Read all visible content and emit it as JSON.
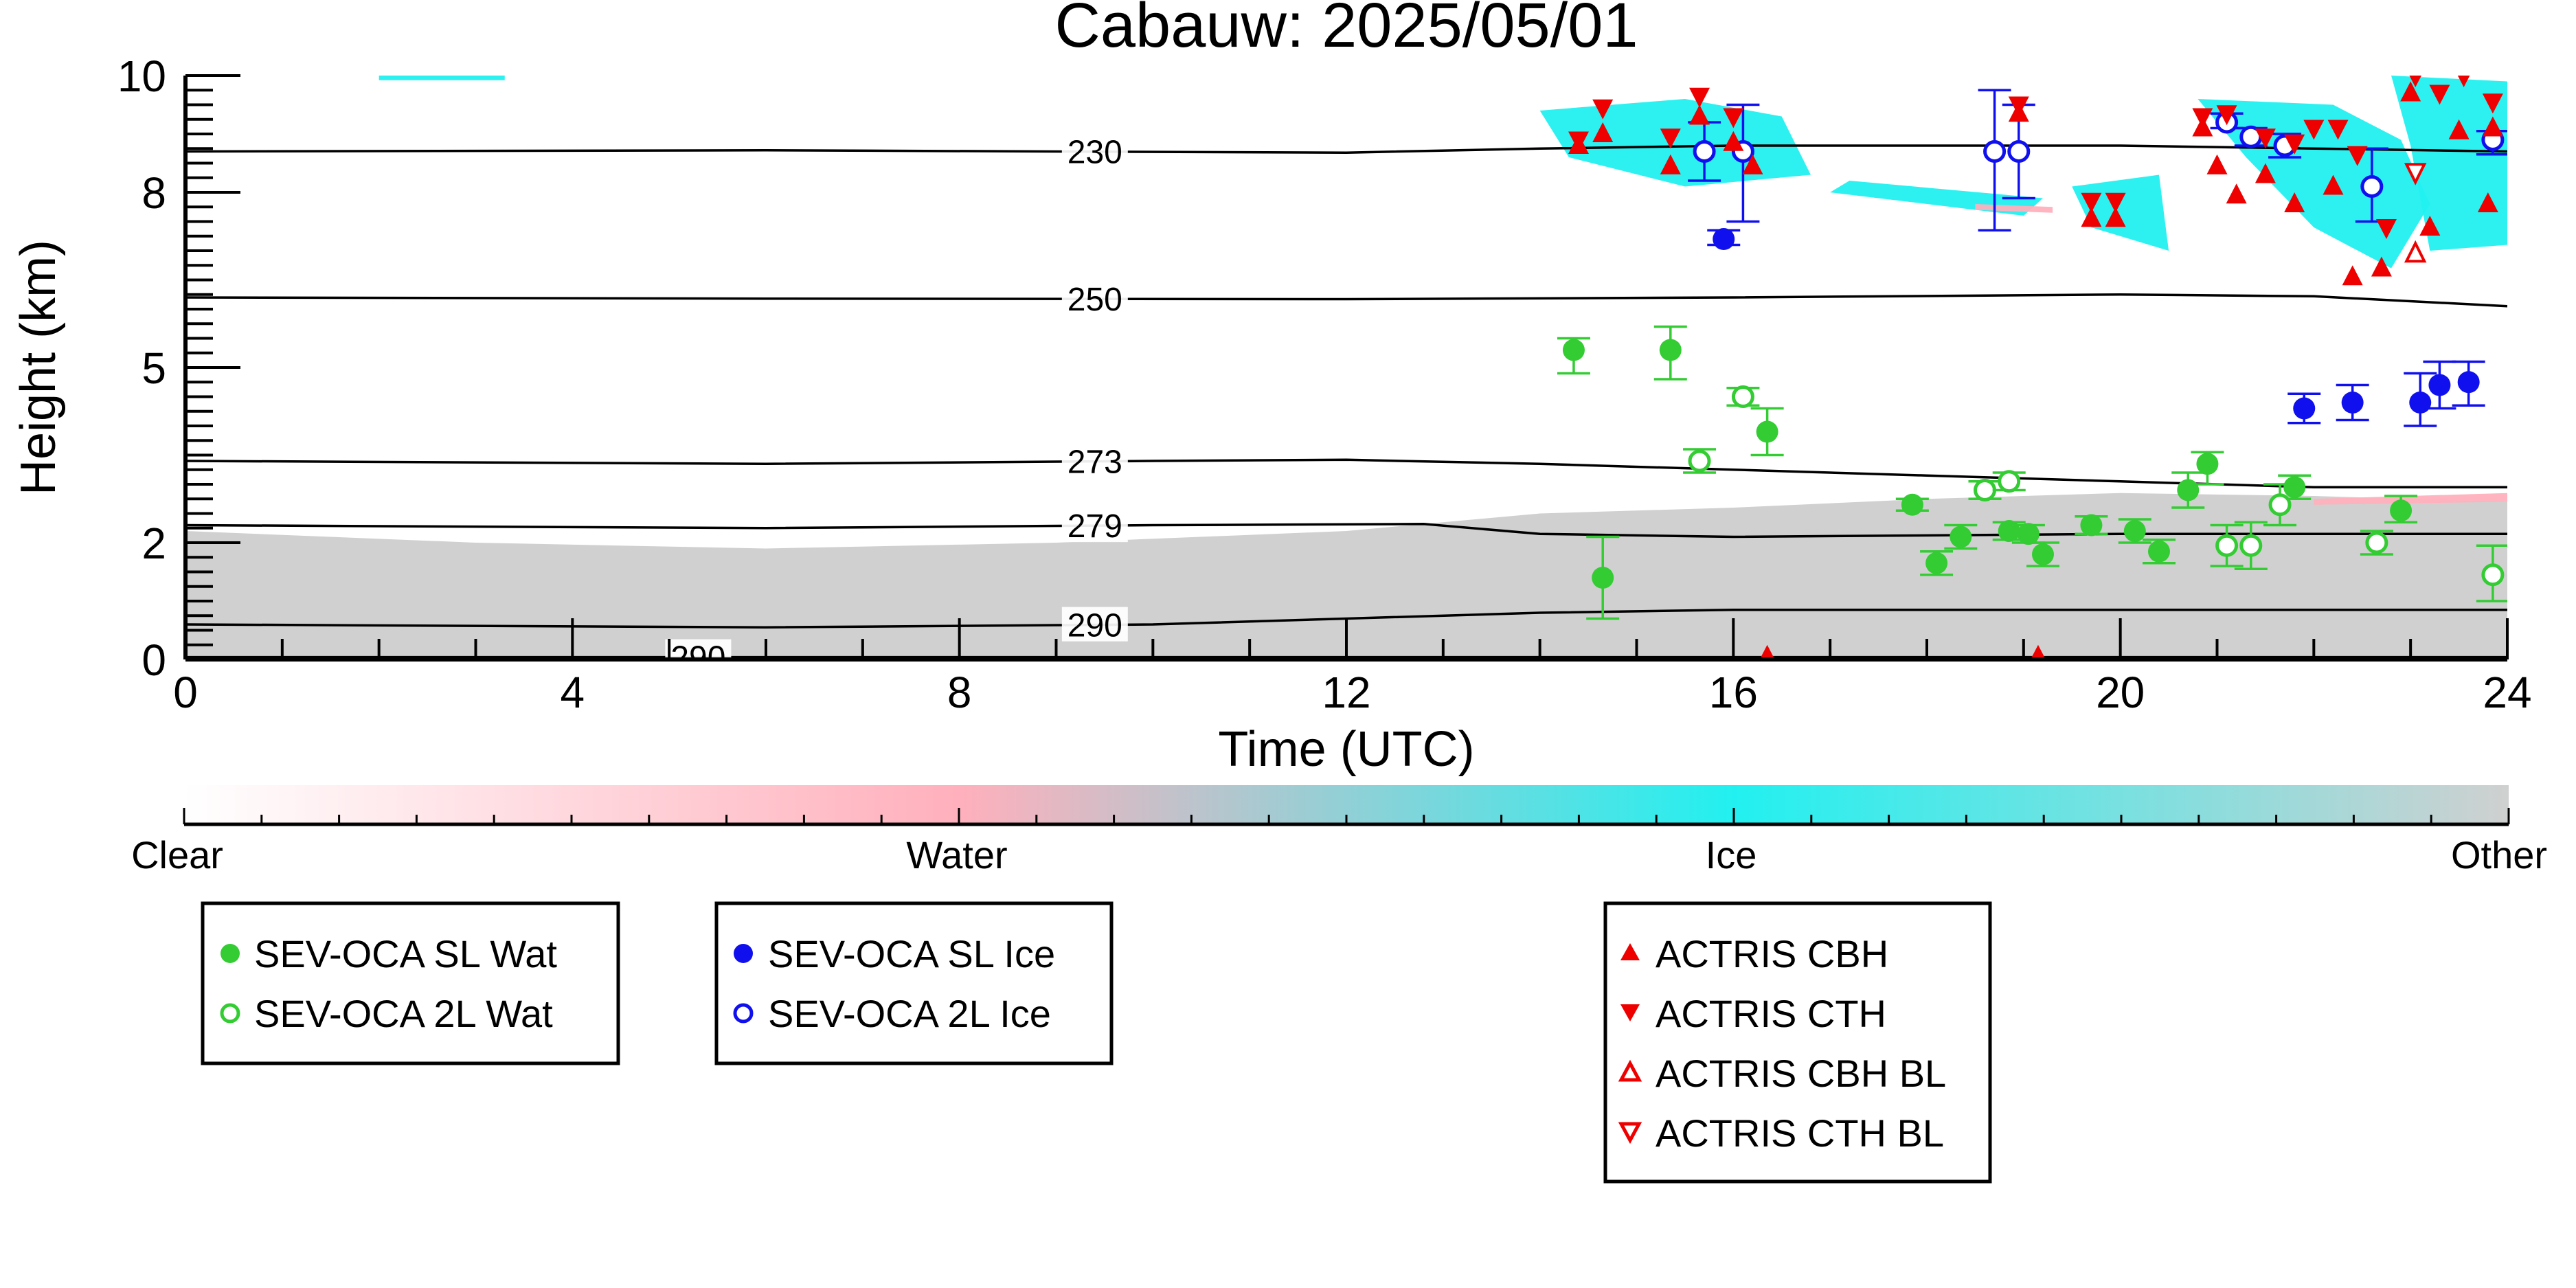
{
  "chart_data": {
    "type": "scatter",
    "title": "Cabauw: 2025/05/01",
    "xlabel": "Time (UTC)",
    "ylabel": "Height (km)",
    "xlim": [
      0,
      24
    ],
    "ylim": [
      0,
      10
    ],
    "xticks": [
      0,
      4,
      8,
      12,
      16,
      20,
      24
    ],
    "xticklabels": [
      "0",
      "4",
      "8",
      "12",
      "16",
      "20",
      "24"
    ],
    "yticks": [
      0,
      2,
      5,
      8,
      10
    ],
    "yticklabels": [
      "0",
      "2",
      "5",
      "8",
      "10"
    ],
    "colors": {
      "sl_water": "#33cc33",
      "sl_ice": "#1010ee",
      "actris": "#ee0000",
      "ice": "#22f0f0",
      "water": "#ffb0bc",
      "other": "#d0d0d0",
      "contour": "#000000"
    },
    "colorbar": {
      "labels": [
        "Clear",
        "Water",
        "Ice",
        "Other"
      ],
      "stops": [
        "#ffffff",
        "#ffb0bc",
        "#22f0f0",
        "#d0d0d0"
      ]
    },
    "isotherms": [
      {
        "label": "230",
        "label_x": 9.4,
        "points": [
          [
            0,
            8.7
          ],
          [
            6,
            8.72
          ],
          [
            12,
            8.68
          ],
          [
            14,
            8.75
          ],
          [
            16,
            8.8
          ],
          [
            20,
            8.8
          ],
          [
            22,
            8.75
          ],
          [
            24,
            8.7
          ]
        ]
      },
      {
        "label": "250",
        "label_x": 9.4,
        "points": [
          [
            0,
            6.2
          ],
          [
            6,
            6.18
          ],
          [
            12,
            6.17
          ],
          [
            16,
            6.2
          ],
          [
            20,
            6.25
          ],
          [
            22,
            6.22
          ],
          [
            24,
            6.05
          ]
        ]
      },
      {
        "label": "273",
        "label_x": 9.4,
        "points": [
          [
            0,
            3.4
          ],
          [
            6,
            3.35
          ],
          [
            10,
            3.4
          ],
          [
            12,
            3.42
          ],
          [
            14,
            3.35
          ],
          [
            16,
            3.25
          ],
          [
            18,
            3.15
          ],
          [
            20,
            3.05
          ],
          [
            22,
            2.95
          ],
          [
            24,
            2.95
          ]
        ]
      },
      {
        "label": "279",
        "label_x": 9.4,
        "points": [
          [
            0,
            2.3
          ],
          [
            6,
            2.25
          ],
          [
            10,
            2.3
          ],
          [
            12.8,
            2.32
          ],
          [
            14,
            2.15
          ],
          [
            16,
            2.1
          ],
          [
            20,
            2.15
          ],
          [
            24,
            2.15
          ]
        ]
      },
      {
        "label": "290",
        "label_x": 9.4,
        "points": [
          [
            0,
            0.6
          ],
          [
            6,
            0.55
          ],
          [
            10,
            0.6
          ],
          [
            12,
            0.7
          ],
          [
            14,
            0.8
          ],
          [
            16,
            0.85
          ],
          [
            20,
            0.85
          ],
          [
            24,
            0.85
          ]
        ]
      },
      {
        "label": "290",
        "label_x": 5.3,
        "points": [
          [
            0,
            0.04
          ],
          [
            24,
            0.04
          ]
        ]
      }
    ],
    "regions": [
      {
        "class": "other",
        "points": [
          [
            0,
            0
          ],
          [
            0,
            2.2
          ],
          [
            3,
            2.0
          ],
          [
            6,
            1.9
          ],
          [
            9,
            2.0
          ],
          [
            12,
            2.2
          ],
          [
            14,
            2.5
          ],
          [
            16,
            2.6
          ],
          [
            18,
            2.75
          ],
          [
            20,
            2.85
          ],
          [
            22,
            2.8
          ],
          [
            24,
            2.7
          ],
          [
            24,
            0
          ]
        ]
      },
      {
        "class": "ice",
        "points": [
          [
            14,
            9.4
          ],
          [
            15.5,
            9.6
          ],
          [
            16.5,
            9.3
          ],
          [
            16.8,
            8.3
          ],
          [
            15.5,
            8.1
          ],
          [
            14.3,
            8.6
          ]
        ]
      },
      {
        "class": "ice",
        "points": [
          [
            20.8,
            9.6
          ],
          [
            22.2,
            9.5
          ],
          [
            22.9,
            8.9
          ],
          [
            23.2,
            7.8
          ],
          [
            22.8,
            6.7
          ],
          [
            22.0,
            7.4
          ],
          [
            21.3,
            8.6
          ]
        ]
      },
      {
        "class": "ice",
        "points": [
          [
            22.8,
            10.0
          ],
          [
            24,
            9.9
          ],
          [
            24,
            7.1
          ],
          [
            23.2,
            7.0
          ],
          [
            23.0,
            8.8
          ]
        ]
      },
      {
        "class": "ice",
        "points": [
          [
            2.0,
            10.0
          ],
          [
            3.3,
            10.0
          ],
          [
            3.3,
            9.92
          ],
          [
            2.0,
            9.92
          ]
        ]
      },
      {
        "class": "ice",
        "points": [
          [
            17.0,
            8.0
          ],
          [
            19.0,
            7.6
          ],
          [
            19.2,
            7.9
          ],
          [
            17.2,
            8.2
          ]
        ]
      },
      {
        "class": "ice",
        "points": [
          [
            19.5,
            8.1
          ],
          [
            20.4,
            8.3
          ],
          [
            20.5,
            7.0
          ],
          [
            19.7,
            7.4
          ]
        ]
      },
      {
        "class": "water",
        "points": [
          [
            18.5,
            7.8
          ],
          [
            19.3,
            7.75
          ],
          [
            19.3,
            7.65
          ],
          [
            18.5,
            7.7
          ]
        ]
      },
      {
        "class": "water",
        "points": [
          [
            22.0,
            2.75
          ],
          [
            24,
            2.85
          ],
          [
            24,
            2.7
          ],
          [
            22.0,
            2.65
          ]
        ]
      }
    ],
    "series": [
      {
        "name": "SEV-OCA SL Wat",
        "marker": "filled-circle",
        "color": "#33cc33",
        "points": [
          {
            "x": 14.35,
            "y": 5.3,
            "lo": 4.9,
            "hi": 5.5
          },
          {
            "x": 14.65,
            "y": 1.4,
            "lo": 0.7,
            "hi": 2.1
          },
          {
            "x": 15.35,
            "y": 5.3,
            "lo": 4.8,
            "hi": 5.7
          },
          {
            "x": 16.35,
            "y": 3.9,
            "lo": 3.5,
            "hi": 4.3
          },
          {
            "x": 17.85,
            "y": 2.65,
            "lo": 2.55,
            "hi": 2.75
          },
          {
            "x": 18.1,
            "y": 1.65,
            "lo": 1.45,
            "hi": 1.85
          },
          {
            "x": 18.35,
            "y": 2.1,
            "lo": 1.9,
            "hi": 2.3
          },
          {
            "x": 18.85,
            "y": 2.2,
            "lo": 2.05,
            "hi": 2.35
          },
          {
            "x": 19.2,
            "y": 1.8,
            "lo": 1.6,
            "hi": 2.0
          },
          {
            "x": 19.7,
            "y": 2.3,
            "lo": 2.15,
            "hi": 2.45
          },
          {
            "x": 20.15,
            "y": 2.2,
            "lo": 2.0,
            "hi": 2.4
          },
          {
            "x": 20.4,
            "y": 1.85,
            "lo": 1.65,
            "hi": 2.05
          },
          {
            "x": 20.7,
            "y": 2.9,
            "lo": 2.6,
            "hi": 3.2
          },
          {
            "x": 20.9,
            "y": 3.35,
            "lo": 3.0,
            "hi": 3.55
          },
          {
            "x": 21.8,
            "y": 2.95,
            "lo": 2.75,
            "hi": 3.15
          },
          {
            "x": 22.9,
            "y": 2.55,
            "lo": 2.35,
            "hi": 2.8
          },
          {
            "x": 19.05,
            "y": 2.15,
            "lo": 2.0,
            "hi": 2.3
          }
        ]
      },
      {
        "name": "SEV-OCA 2L Wat",
        "marker": "open-circle",
        "color": "#33cc33",
        "points": [
          {
            "x": 15.65,
            "y": 3.4,
            "lo": 3.2,
            "hi": 3.6
          },
          {
            "x": 16.1,
            "y": 4.5,
            "lo": 4.35,
            "hi": 4.65
          },
          {
            "x": 18.6,
            "y": 2.9,
            "lo": 2.75,
            "hi": 3.05
          },
          {
            "x": 18.85,
            "y": 3.05,
            "lo": 2.9,
            "hi": 3.2
          },
          {
            "x": 21.1,
            "y": 1.95,
            "lo": 1.6,
            "hi": 2.3
          },
          {
            "x": 21.35,
            "y": 1.95,
            "lo": 1.55,
            "hi": 2.35
          },
          {
            "x": 21.65,
            "y": 2.65,
            "lo": 2.3,
            "hi": 3.0
          },
          {
            "x": 22.65,
            "y": 2.0,
            "lo": 1.8,
            "hi": 2.2
          },
          {
            "x": 23.85,
            "y": 1.45,
            "lo": 1.0,
            "hi": 1.95
          }
        ]
      },
      {
        "name": "SEV-OCA SL Ice",
        "marker": "filled-circle",
        "color": "#1010ee",
        "points": [
          {
            "x": 15.9,
            "y": 7.2,
            "lo": 7.1,
            "hi": 7.35
          },
          {
            "x": 21.9,
            "y": 4.3,
            "lo": 4.05,
            "hi": 4.55
          },
          {
            "x": 22.4,
            "y": 4.4,
            "lo": 4.1,
            "hi": 4.7
          },
          {
            "x": 23.1,
            "y": 4.4,
            "lo": 4.0,
            "hi": 4.9
          },
          {
            "x": 23.3,
            "y": 4.7,
            "lo": 4.3,
            "hi": 5.1
          },
          {
            "x": 23.6,
            "y": 4.75,
            "lo": 4.35,
            "hi": 5.1
          }
        ]
      },
      {
        "name": "SEV-OCA 2L Ice",
        "marker": "open-circle",
        "color": "#1010ee",
        "points": [
          {
            "x": 15.7,
            "y": 8.7,
            "lo": 8.2,
            "hi": 9.2
          },
          {
            "x": 16.1,
            "y": 8.7,
            "lo": 7.5,
            "hi": 9.5
          },
          {
            "x": 18.7,
            "y": 8.7,
            "lo": 7.35,
            "hi": 9.75
          },
          {
            "x": 18.95,
            "y": 8.7,
            "lo": 7.9,
            "hi": 9.5
          },
          {
            "x": 21.1,
            "y": 9.2,
            "lo": 9.1,
            "hi": 9.35
          },
          {
            "x": 21.35,
            "y": 8.95,
            "lo": 8.8,
            "hi": 9.1
          },
          {
            "x": 21.7,
            "y": 8.8,
            "lo": 8.6,
            "hi": 9.0
          },
          {
            "x": 22.6,
            "y": 8.1,
            "lo": 7.5,
            "hi": 8.75
          },
          {
            "x": 23.85,
            "y": 8.9,
            "lo": 8.65,
            "hi": 9.05
          }
        ]
      },
      {
        "name": "ACTRIS CBH",
        "marker": "triangle-up",
        "color": "#ee0000",
        "points": [
          {
            "x": 14.4,
            "y": 8.8
          },
          {
            "x": 14.65,
            "y": 9.0
          },
          {
            "x": 15.35,
            "y": 8.45
          },
          {
            "x": 15.65,
            "y": 9.3
          },
          {
            "x": 16.0,
            "y": 8.85
          },
          {
            "x": 16.2,
            "y": 8.45
          },
          {
            "x": 16.35,
            "y": 0.05
          },
          {
            "x": 18.95,
            "y": 9.35
          },
          {
            "x": 19.15,
            "y": 0.05
          },
          {
            "x": 19.7,
            "y": 7.55
          },
          {
            "x": 19.95,
            "y": 7.55
          },
          {
            "x": 20.85,
            "y": 9.1
          },
          {
            "x": 21.0,
            "y": 8.45
          },
          {
            "x": 21.2,
            "y": 7.95
          },
          {
            "x": 21.5,
            "y": 8.3
          },
          {
            "x": 21.8,
            "y": 7.8
          },
          {
            "x": 22.2,
            "y": 8.1
          },
          {
            "x": 22.4,
            "y": 6.55
          },
          {
            "x": 22.7,
            "y": 6.7
          },
          {
            "x": 23.0,
            "y": 9.7
          },
          {
            "x": 23.2,
            "y": 7.4
          },
          {
            "x": 23.5,
            "y": 9.05
          },
          {
            "x": 23.8,
            "y": 7.8
          },
          {
            "x": 23.85,
            "y": 9.1
          }
        ]
      },
      {
        "name": "ACTRIS CTH",
        "marker": "triangle-down",
        "color": "#ee0000",
        "points": [
          {
            "x": 14.4,
            "y": 8.9
          },
          {
            "x": 14.65,
            "y": 9.45
          },
          {
            "x": 15.35,
            "y": 8.95
          },
          {
            "x": 15.65,
            "y": 9.65
          },
          {
            "x": 16.0,
            "y": 9.3
          },
          {
            "x": 18.95,
            "y": 9.5
          },
          {
            "x": 19.7,
            "y": 7.85
          },
          {
            "x": 19.95,
            "y": 7.85
          },
          {
            "x": 20.85,
            "y": 9.3
          },
          {
            "x": 21.1,
            "y": 9.35
          },
          {
            "x": 21.5,
            "y": 8.95
          },
          {
            "x": 21.8,
            "y": 8.85
          },
          {
            "x": 22.0,
            "y": 9.1
          },
          {
            "x": 22.25,
            "y": 9.1
          },
          {
            "x": 22.45,
            "y": 8.65
          },
          {
            "x": 22.75,
            "y": 7.4
          },
          {
            "x": 23.05,
            "y": 10.0
          },
          {
            "x": 23.3,
            "y": 9.7
          },
          {
            "x": 23.55,
            "y": 10.0
          },
          {
            "x": 23.85,
            "y": 9.55
          }
        ]
      },
      {
        "name": "ACTRIS CBH BL",
        "marker": "open-triangle-up",
        "color": "#ee0000",
        "points": [
          {
            "x": 23.05,
            "y": 6.95
          }
        ]
      },
      {
        "name": "ACTRIS CTH BL",
        "marker": "open-triangle-down",
        "color": "#ee0000",
        "points": [
          {
            "x": 23.05,
            "y": 8.35
          }
        ]
      }
    ],
    "legends": [
      {
        "entries": [
          "SEV-OCA SL Wat",
          "SEV-OCA 2L Wat"
        ]
      },
      {
        "entries": [
          "SEV-OCA SL Ice",
          "SEV-OCA 2L Ice"
        ]
      },
      {
        "entries": [
          "ACTRIS CBH",
          "ACTRIS CTH",
          "ACTRIS CBH BL",
          "ACTRIS CTH BL"
        ]
      }
    ]
  }
}
